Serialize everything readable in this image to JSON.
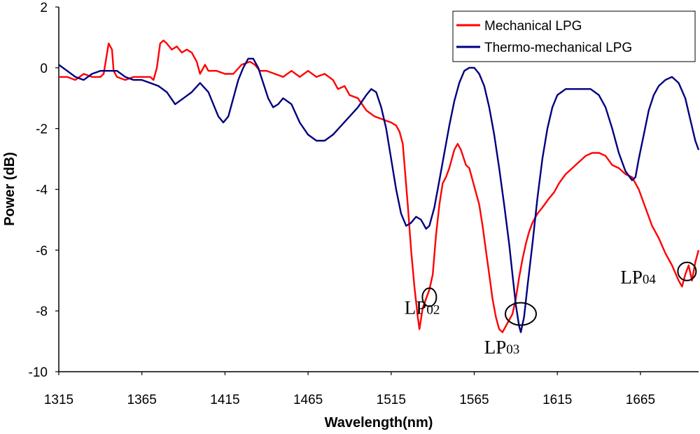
{
  "chart_data": {
    "type": "line",
    "xlabel": "Wavelength(nm)",
    "ylabel": "Power (dB)",
    "xlim": [
      1315,
      1700
    ],
    "ylim": [
      -10,
      2
    ],
    "xticks": [
      1315,
      1365,
      1415,
      1465,
      1515,
      1565,
      1615,
      1665
    ],
    "yticks": [
      2,
      0,
      -2,
      -4,
      -6,
      -8,
      -10
    ],
    "grid": false,
    "legend": "top-right",
    "series": [
      {
        "name": "Mechanical LPG",
        "color": "#ff0000",
        "points": [
          [
            1315,
            -0.3
          ],
          [
            1320,
            -0.3
          ],
          [
            1325,
            -0.4
          ],
          [
            1330,
            -0.2
          ],
          [
            1335,
            -0.3
          ],
          [
            1340,
            -0.3
          ],
          [
            1342,
            -0.2
          ],
          [
            1345,
            0.8
          ],
          [
            1347,
            0.6
          ],
          [
            1348,
            -0.1
          ],
          [
            1350,
            -0.3
          ],
          [
            1355,
            -0.4
          ],
          [
            1360,
            -0.3
          ],
          [
            1365,
            -0.3
          ],
          [
            1370,
            -0.3
          ],
          [
            1372,
            -0.4
          ],
          [
            1374,
            0.0
          ],
          [
            1376,
            0.8
          ],
          [
            1378,
            0.9
          ],
          [
            1380,
            0.8
          ],
          [
            1383,
            0.6
          ],
          [
            1386,
            0.7
          ],
          [
            1389,
            0.5
          ],
          [
            1392,
            0.6
          ],
          [
            1395,
            0.5
          ],
          [
            1398,
            0.2
          ],
          [
            1400,
            -0.2
          ],
          [
            1403,
            0.1
          ],
          [
            1405,
            -0.1
          ],
          [
            1410,
            -0.1
          ],
          [
            1415,
            -0.2
          ],
          [
            1420,
            -0.2
          ],
          [
            1425,
            0.1
          ],
          [
            1430,
            0.2
          ],
          [
            1433,
            0.1
          ],
          [
            1436,
            -0.1
          ],
          [
            1440,
            -0.1
          ],
          [
            1445,
            -0.2
          ],
          [
            1450,
            -0.3
          ],
          [
            1455,
            -0.1
          ],
          [
            1460,
            -0.3
          ],
          [
            1465,
            -0.1
          ],
          [
            1470,
            -0.3
          ],
          [
            1475,
            -0.2
          ],
          [
            1480,
            -0.4
          ],
          [
            1483,
            -0.7
          ],
          [
            1487,
            -0.6
          ],
          [
            1490,
            -0.9
          ],
          [
            1495,
            -1.0
          ],
          [
            1500,
            -1.4
          ],
          [
            1505,
            -1.6
          ],
          [
            1510,
            -1.7
          ],
          [
            1515,
            -1.8
          ],
          [
            1518,
            -1.9
          ],
          [
            1520,
            -2.1
          ],
          [
            1522,
            -2.5
          ],
          [
            1525,
            -4.5
          ],
          [
            1527,
            -6.0
          ],
          [
            1529,
            -7.2
          ],
          [
            1531,
            -8.2
          ],
          [
            1532,
            -8.6
          ],
          [
            1534,
            -7.9
          ],
          [
            1536,
            -7.6
          ],
          [
            1538,
            -7.3
          ],
          [
            1540,
            -6.8
          ],
          [
            1542,
            -5.5
          ],
          [
            1544,
            -4.5
          ],
          [
            1546,
            -3.8
          ],
          [
            1548,
            -3.6
          ],
          [
            1550,
            -3.3
          ],
          [
            1553,
            -2.7
          ],
          [
            1555,
            -2.5
          ],
          [
            1557,
            -2.7
          ],
          [
            1560,
            -3.2
          ],
          [
            1562,
            -3.3
          ],
          [
            1565,
            -3.9
          ],
          [
            1568,
            -4.5
          ],
          [
            1570,
            -5.2
          ],
          [
            1572,
            -6.0
          ],
          [
            1574,
            -6.8
          ],
          [
            1576,
            -7.6
          ],
          [
            1578,
            -8.2
          ],
          [
            1580,
            -8.6
          ],
          [
            1582,
            -8.7
          ],
          [
            1584,
            -8.5
          ],
          [
            1586,
            -8.3
          ],
          [
            1588,
            -8.1
          ],
          [
            1590,
            -7.6
          ],
          [
            1592,
            -6.9
          ],
          [
            1594,
            -6.3
          ],
          [
            1596,
            -5.8
          ],
          [
            1598,
            -5.4
          ],
          [
            1600,
            -5.1
          ],
          [
            1603,
            -4.8
          ],
          [
            1606,
            -4.6
          ],
          [
            1610,
            -4.3
          ],
          [
            1613,
            -4.1
          ],
          [
            1616,
            -3.8
          ],
          [
            1620,
            -3.5
          ],
          [
            1624,
            -3.3
          ],
          [
            1628,
            -3.1
          ],
          [
            1632,
            -2.9
          ],
          [
            1636,
            -2.8
          ],
          [
            1640,
            -2.8
          ],
          [
            1644,
            -2.9
          ],
          [
            1648,
            -3.2
          ],
          [
            1652,
            -3.3
          ],
          [
            1656,
            -3.5
          ],
          [
            1660,
            -3.6
          ],
          [
            1664,
            -4.0
          ],
          [
            1668,
            -4.6
          ],
          [
            1672,
            -5.2
          ],
          [
            1676,
            -5.6
          ],
          [
            1680,
            -6.1
          ],
          [
            1684,
            -6.5
          ],
          [
            1688,
            -7.0
          ],
          [
            1690,
            -7.2
          ],
          [
            1692,
            -6.8
          ],
          [
            1694,
            -6.5
          ],
          [
            1696,
            -7.0
          ],
          [
            1698,
            -6.4
          ],
          [
            1700,
            -6.0
          ]
        ]
      },
      {
        "name": "Thermo-mechanical LPG",
        "color": "#000080",
        "points": [
          [
            1315,
            0.1
          ],
          [
            1320,
            -0.1
          ],
          [
            1325,
            -0.3
          ],
          [
            1330,
            -0.4
          ],
          [
            1335,
            -0.2
          ],
          [
            1340,
            -0.1
          ],
          [
            1345,
            -0.1
          ],
          [
            1350,
            -0.1
          ],
          [
            1355,
            -0.3
          ],
          [
            1360,
            -0.4
          ],
          [
            1365,
            -0.4
          ],
          [
            1370,
            -0.5
          ],
          [
            1375,
            -0.6
          ],
          [
            1380,
            -0.8
          ],
          [
            1385,
            -1.2
          ],
          [
            1390,
            -1.0
          ],
          [
            1395,
            -0.8
          ],
          [
            1400,
            -0.5
          ],
          [
            1405,
            -0.8
          ],
          [
            1408,
            -1.2
          ],
          [
            1411,
            -1.6
          ],
          [
            1414,
            -1.8
          ],
          [
            1417,
            -1.6
          ],
          [
            1420,
            -1.0
          ],
          [
            1423,
            -0.4
          ],
          [
            1426,
            0.0
          ],
          [
            1429,
            0.3
          ],
          [
            1432,
            0.3
          ],
          [
            1435,
            0.0
          ],
          [
            1438,
            -0.5
          ],
          [
            1441,
            -1.0
          ],
          [
            1444,
            -1.3
          ],
          [
            1447,
            -1.2
          ],
          [
            1450,
            -1.0
          ],
          [
            1455,
            -1.2
          ],
          [
            1460,
            -1.8
          ],
          [
            1465,
            -2.2
          ],
          [
            1470,
            -2.4
          ],
          [
            1475,
            -2.4
          ],
          [
            1480,
            -2.2
          ],
          [
            1485,
            -1.9
          ],
          [
            1490,
            -1.6
          ],
          [
            1495,
            -1.3
          ],
          [
            1500,
            -0.9
          ],
          [
            1503,
            -0.7
          ],
          [
            1506,
            -0.8
          ],
          [
            1509,
            -1.3
          ],
          [
            1512,
            -2.0
          ],
          [
            1515,
            -3.0
          ],
          [
            1518,
            -4.0
          ],
          [
            1521,
            -4.8
          ],
          [
            1524,
            -5.2
          ],
          [
            1527,
            -5.1
          ],
          [
            1530,
            -4.9
          ],
          [
            1533,
            -5.0
          ],
          [
            1536,
            -5.3
          ],
          [
            1538,
            -5.2
          ],
          [
            1541,
            -4.6
          ],
          [
            1544,
            -3.7
          ],
          [
            1547,
            -2.8
          ],
          [
            1550,
            -1.9
          ],
          [
            1553,
            -1.1
          ],
          [
            1556,
            -0.5
          ],
          [
            1559,
            -0.1
          ],
          [
            1562,
            0.0
          ],
          [
            1565,
            0.0
          ],
          [
            1568,
            -0.2
          ],
          [
            1571,
            -0.6
          ],
          [
            1574,
            -1.3
          ],
          [
            1577,
            -2.2
          ],
          [
            1580,
            -3.3
          ],
          [
            1583,
            -4.5
          ],
          [
            1586,
            -5.8
          ],
          [
            1588,
            -6.8
          ],
          [
            1590,
            -7.8
          ],
          [
            1592,
            -8.5
          ],
          [
            1593,
            -8.7
          ],
          [
            1595,
            -8.2
          ],
          [
            1597,
            -7.2
          ],
          [
            1600,
            -5.8
          ],
          [
            1603,
            -4.3
          ],
          [
            1606,
            -3.0
          ],
          [
            1609,
            -2.0
          ],
          [
            1612,
            -1.3
          ],
          [
            1615,
            -0.9
          ],
          [
            1620,
            -0.7
          ],
          [
            1625,
            -0.7
          ],
          [
            1630,
            -0.7
          ],
          [
            1635,
            -0.7
          ],
          [
            1640,
            -0.9
          ],
          [
            1644,
            -1.3
          ],
          [
            1648,
            -2.0
          ],
          [
            1652,
            -2.8
          ],
          [
            1656,
            -3.4
          ],
          [
            1660,
            -3.7
          ],
          [
            1662,
            -3.6
          ],
          [
            1664,
            -3.0
          ],
          [
            1667,
            -2.2
          ],
          [
            1670,
            -1.4
          ],
          [
            1673,
            -0.9
          ],
          [
            1676,
            -0.6
          ],
          [
            1680,
            -0.4
          ],
          [
            1684,
            -0.3
          ],
          [
            1688,
            -0.5
          ],
          [
            1692,
            -1.0
          ],
          [
            1695,
            -1.7
          ],
          [
            1698,
            -2.4
          ],
          [
            1700,
            -2.7
          ]
        ]
      }
    ],
    "annotations": [
      {
        "base": "LP",
        "sub": "02",
        "x": 1523,
        "y": -8.1,
        "circle": {
          "x": 1538,
          "y": -7.55,
          "rx": 10,
          "ry": 13
        }
      },
      {
        "base": "LP",
        "sub": "03",
        "x": 1571,
        "y": -9.4,
        "circle": {
          "x": 1593,
          "y": -8.1,
          "rx": 22,
          "ry": 16
        }
      },
      {
        "base": "LP",
        "sub": "04",
        "x": 1653,
        "y": -7.1,
        "circle": {
          "x": 1693,
          "y": -6.7,
          "rx": 13,
          "ry": 13
        }
      }
    ]
  }
}
